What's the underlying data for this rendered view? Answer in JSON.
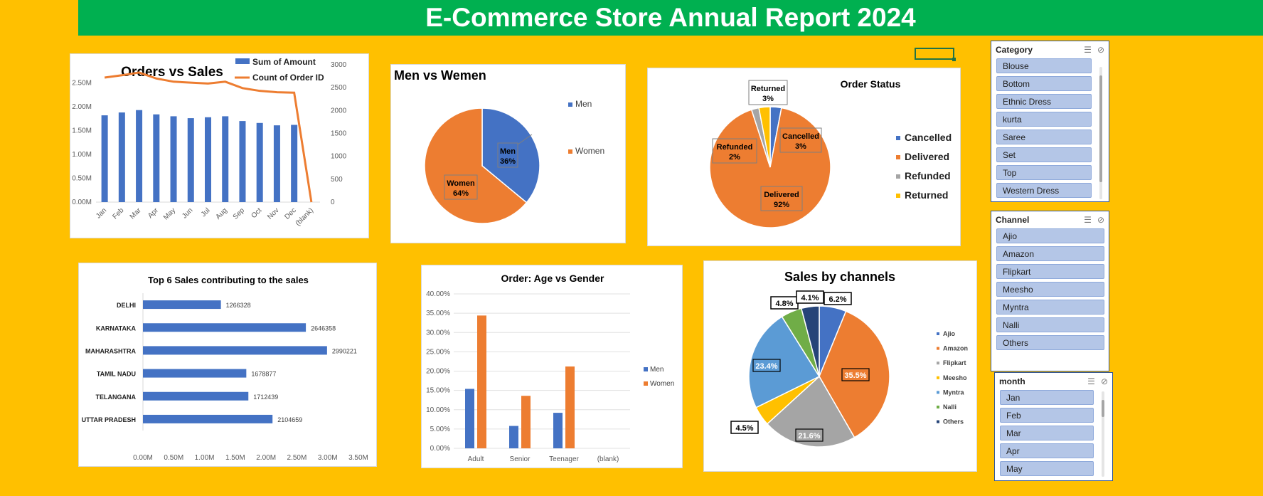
{
  "header": {
    "title": "E-Commerce Store Annual Report 2024"
  },
  "slicers": {
    "category": {
      "title": "Category",
      "items": [
        "Blouse",
        "Bottom",
        "Ethnic Dress",
        "kurta",
        "Saree",
        "Set",
        "Top",
        "Western Dress"
      ]
    },
    "channel": {
      "title": "Channel",
      "items": [
        "Ajio",
        "Amazon",
        "Flipkart",
        "Meesho",
        "Myntra",
        "Nalli",
        "Others"
      ]
    },
    "month": {
      "title": "month",
      "items": [
        "Jan",
        "Feb",
        "Mar",
        "Apr",
        "May"
      ]
    }
  },
  "chart_data": [
    {
      "id": "orders_vs_sales",
      "type": "bar",
      "title": "Orders vs Sales",
      "categories": [
        "Jan",
        "Feb",
        "Mar",
        "Apr",
        "May",
        "Jun",
        "Jul",
        "Aug",
        "Sep",
        "Oct",
        "Nov",
        "Dec",
        "(blank)"
      ],
      "series": [
        {
          "name": "Sum of Amount",
          "chart": "bar",
          "axis": "left",
          "color": "#4472C4",
          "values": [
            1820000,
            1880000,
            1930000,
            1840000,
            1800000,
            1760000,
            1780000,
            1800000,
            1700000,
            1660000,
            1610000,
            1620000,
            0
          ]
        },
        {
          "name": "Count of Order ID",
          "chart": "line",
          "axis": "right",
          "color": "#ED7D31",
          "values": [
            2720,
            2770,
            2830,
            2700,
            2630,
            2610,
            2590,
            2630,
            2490,
            2430,
            2400,
            2390,
            0
          ]
        }
      ],
      "y_left": {
        "ticks": [
          "0.00M",
          "0.50M",
          "1.00M",
          "1.50M",
          "2.00M",
          "2.50M"
        ],
        "lim": [
          0,
          2500000
        ]
      },
      "y_right": {
        "ticks": [
          "0",
          "500",
          "1000",
          "1500",
          "2000",
          "2500",
          "3000"
        ],
        "lim": [
          0,
          3000
        ]
      }
    },
    {
      "id": "men_vs_women",
      "type": "pie",
      "title": "Men vs Wemen",
      "labels": [
        "Men",
        "Women"
      ],
      "values": [
        36,
        64
      ],
      "colors": [
        "#4472C4",
        "#ED7D31"
      ],
      "data_labels": [
        {
          "name": "Men",
          "pct": "36%"
        },
        {
          "name": "Women",
          "pct": "64%"
        }
      ]
    },
    {
      "id": "order_status",
      "type": "pie",
      "title": "Order Status",
      "labels": [
        "Cancelled",
        "Delivered",
        "Refunded",
        "Returned"
      ],
      "values": [
        3,
        92,
        2,
        3
      ],
      "colors": [
        "#4472C4",
        "#ED7D31",
        "#A5A5A5",
        "#FFC000"
      ],
      "data_labels": [
        {
          "name": "Cancelled",
          "pct": "3%"
        },
        {
          "name": "Delivered",
          "pct": "92%"
        },
        {
          "name": "Refunded",
          "pct": "2%"
        },
        {
          "name": "Returned",
          "pct": "3%"
        }
      ]
    },
    {
      "id": "top_states",
      "type": "bar",
      "orientation": "horizontal",
      "title": "Top 6 Sales contributing to the sales",
      "categories": [
        "DELHI",
        "KARNATAKA",
        "MAHARASHTRA",
        "TAMIL NADU",
        "TELANGANA",
        "UTTAR PRADESH"
      ],
      "values": [
        1266328,
        2646358,
        2990221,
        1678877,
        1712439,
        2104659
      ],
      "color": "#4472C4",
      "x_ticks": [
        "0.00M",
        "0.50M",
        "1.00M",
        "1.50M",
        "2.00M",
        "2.50M",
        "3.00M",
        "3.50M"
      ],
      "xlim": [
        0,
        3500000
      ]
    },
    {
      "id": "age_vs_gender",
      "type": "bar",
      "title": "Order: Age vs Gender",
      "categories": [
        "Adult",
        "Senior",
        "Teenager",
        "(blank)"
      ],
      "series": [
        {
          "name": "Men",
          "color": "#4472C4",
          "values": [
            15.4,
            5.8,
            9.2,
            0
          ]
        },
        {
          "name": "Women",
          "color": "#ED7D31",
          "values": [
            34.4,
            13.6,
            21.2,
            0
          ]
        }
      ],
      "y_ticks": [
        "0.00%",
        "5.00%",
        "10.00%",
        "15.00%",
        "20.00%",
        "25.00%",
        "30.00%",
        "35.00%",
        "40.00%"
      ],
      "ylim": [
        0,
        40
      ]
    },
    {
      "id": "sales_by_channels",
      "type": "pie",
      "title": "Sales by channels",
      "labels": [
        "Ajio",
        "Amazon",
        "Flipkart",
        "Meesho",
        "Myntra",
        "Nalli",
        "Others"
      ],
      "values": [
        6.2,
        35.5,
        21.6,
        4.5,
        23.4,
        4.8,
        4.1
      ],
      "pct_labels": [
        "6.2%",
        "35.5%",
        "21.6%",
        "4.5%",
        "23.4%",
        "4.8%",
        "4.1%"
      ],
      "colors": [
        "#4472C4",
        "#ED7D31",
        "#A5A5A5",
        "#FFC000",
        "#5B9BD5",
        "#70AD47",
        "#264478"
      ]
    }
  ]
}
